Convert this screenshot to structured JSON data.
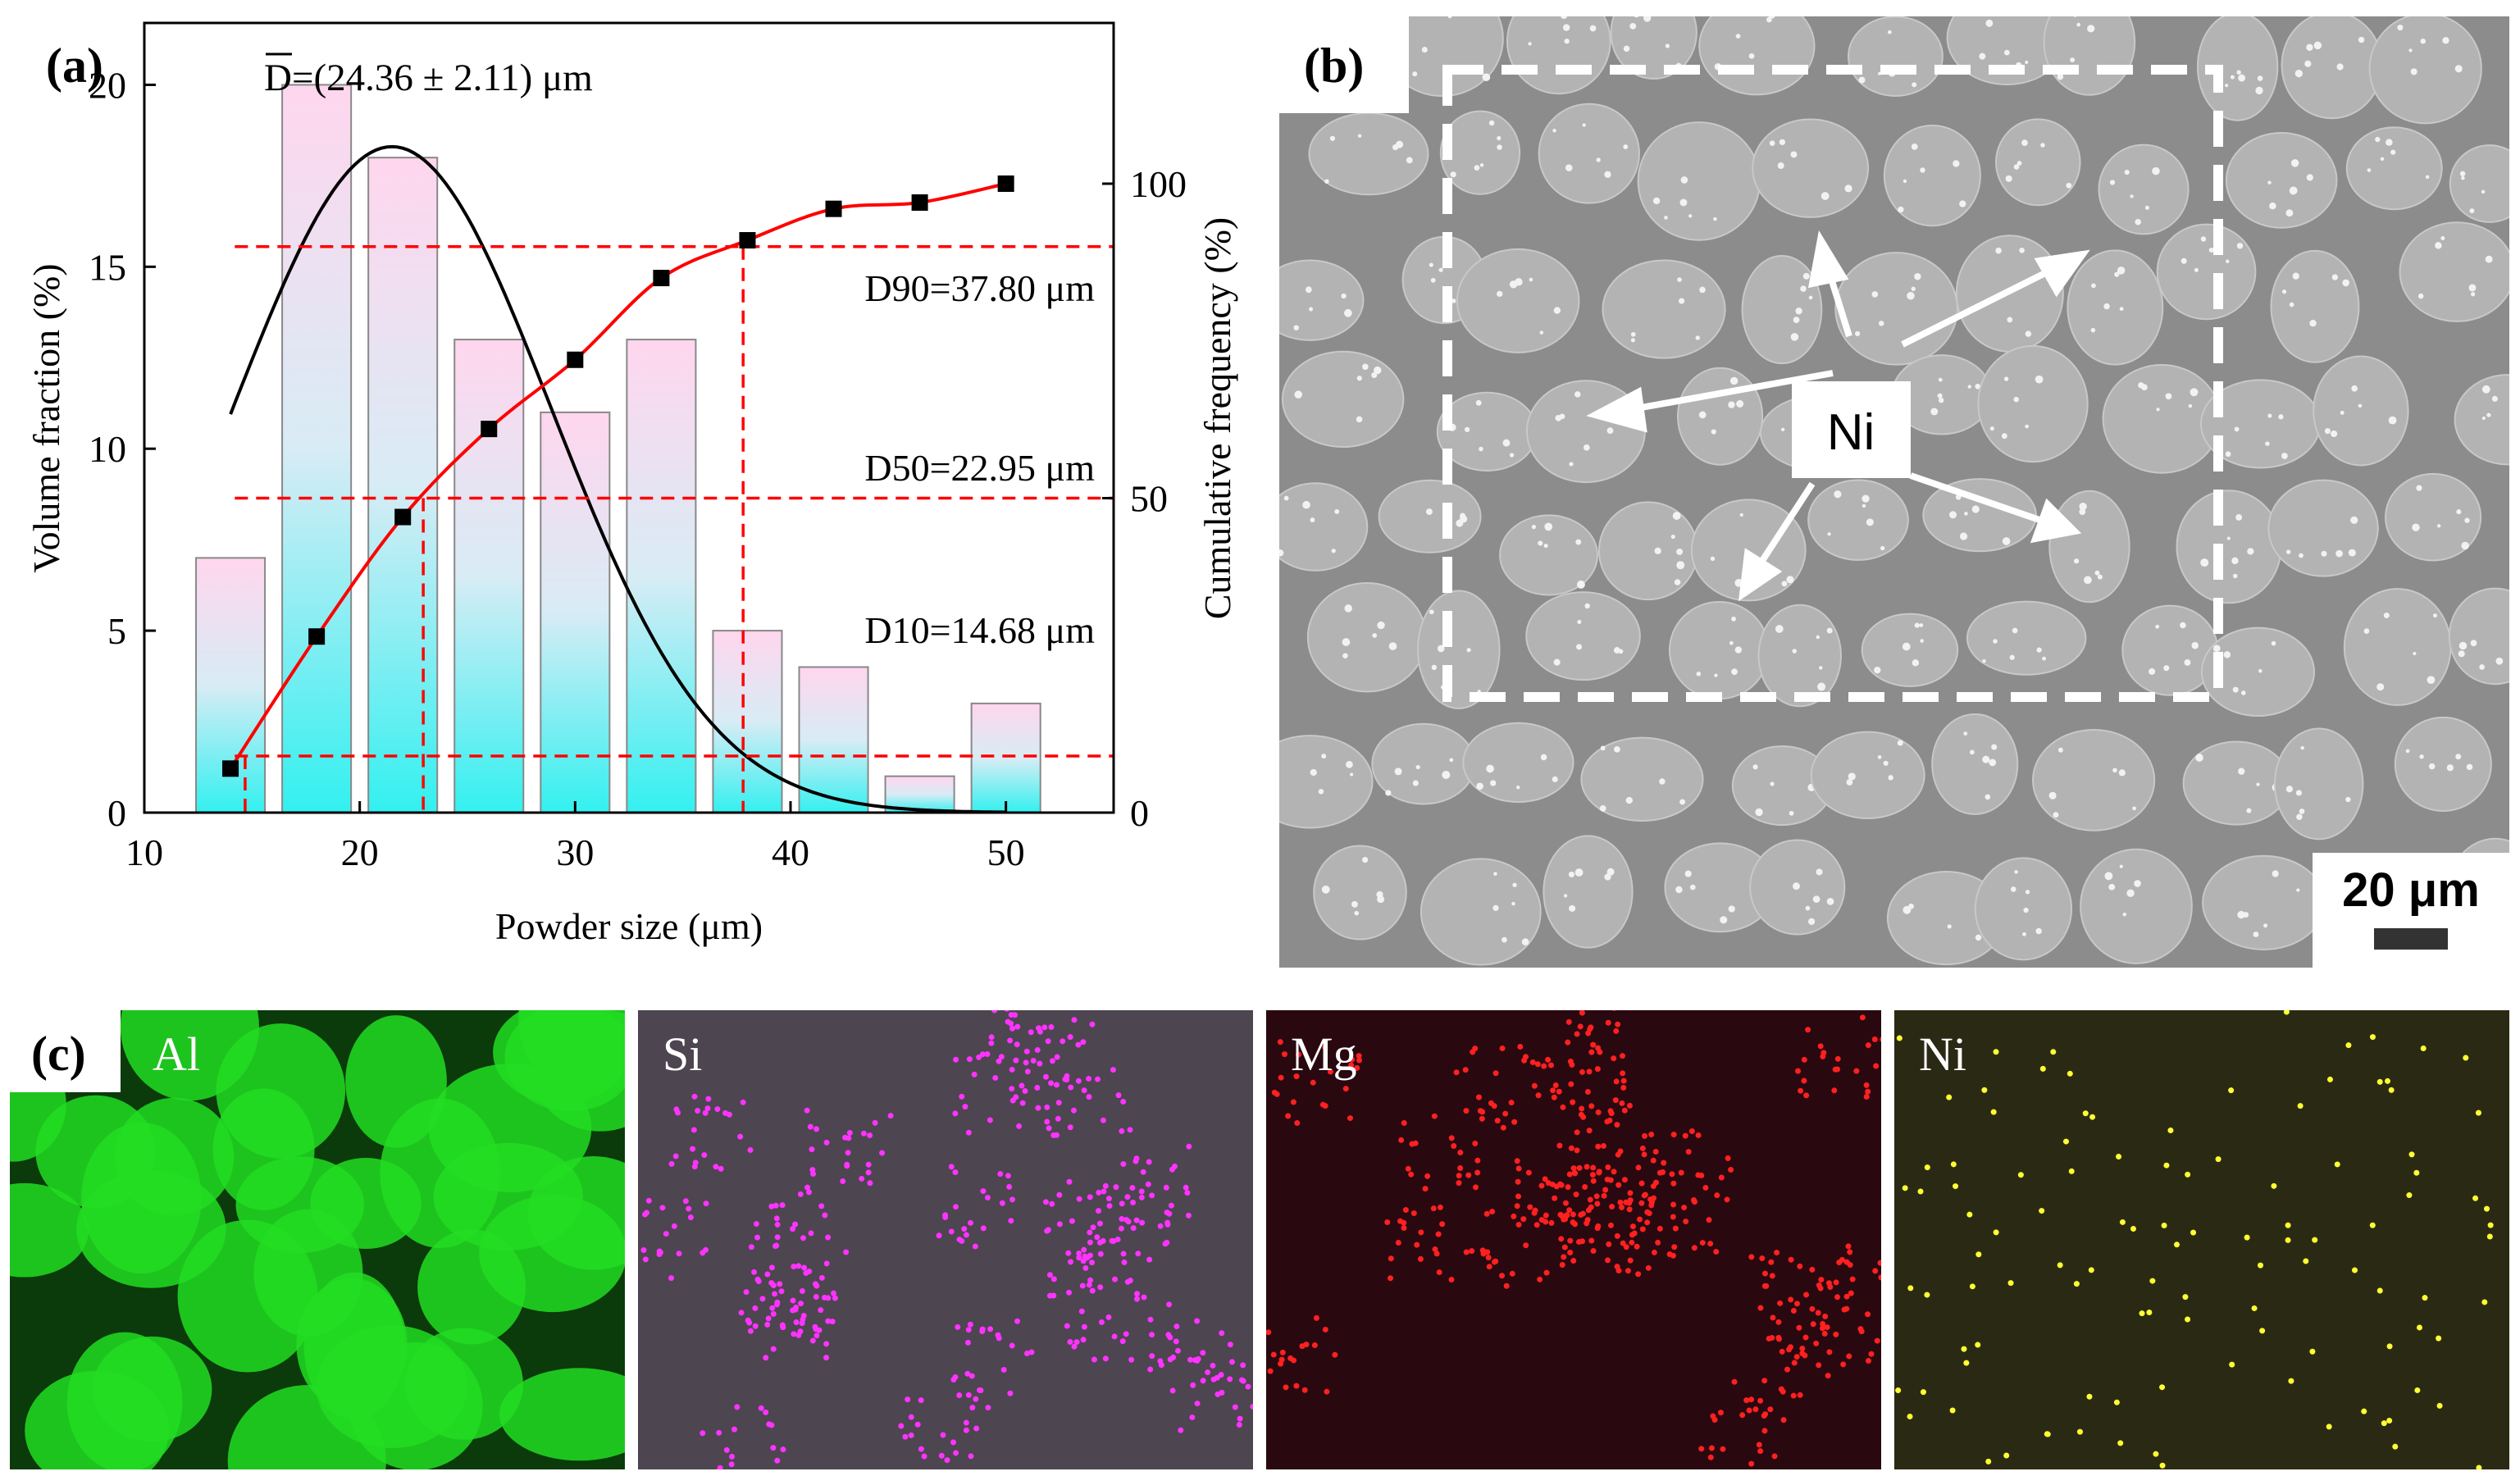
{
  "panel_labels": {
    "a": "(a)",
    "b": "(b)",
    "c": "(c)"
  },
  "chart_data": {
    "type": "bar",
    "mean_label": "D=(24.36 ± 2.11) μm",
    "xlabel": "Powder size (μm)",
    "ylabel_left": "Volume fraction (%)",
    "ylabel_right": "Cumulative frequency (%)",
    "xlim": [
      10,
      55
    ],
    "ylim_left": [
      0,
      21.7
    ],
    "ylim_right": [
      0,
      100
    ],
    "x_ticks": [
      10,
      20,
      30,
      40,
      50
    ],
    "y_left_ticks": [
      0,
      5,
      10,
      15,
      20
    ],
    "y_right_ticks": [
      0,
      50,
      100
    ],
    "bars": {
      "name": "Volume fraction",
      "x": [
        14,
        18,
        22,
        26,
        30,
        34,
        38,
        42,
        46,
        50
      ],
      "values": [
        7,
        20,
        18,
        13,
        11,
        13,
        5,
        4,
        1,
        3
      ],
      "width": 3.2
    },
    "cumulative_points": {
      "name": "Cumulative frequency",
      "x": [
        14,
        18,
        22,
        26,
        30,
        34,
        38,
        42,
        46,
        50
      ],
      "values": [
        7,
        28,
        47,
        61,
        72,
        85,
        91,
        96,
        97,
        100
      ]
    },
    "normal_fit": {
      "mean": 21.5,
      "sigma": 7.4,
      "peak": 18.3,
      "x_range": [
        14,
        50
      ]
    },
    "annotations": [
      {
        "label": "D10=14.68 μm",
        "x": 14.68,
        "cum": 9
      },
      {
        "label": "D50=22.95 μm",
        "x": 22.95,
        "cum": 50
      },
      {
        "label": "D90=37.80 μm",
        "x": 37.8,
        "cum": 90
      }
    ],
    "colors": {
      "curve": "#ff0000",
      "fit": "#000000",
      "bar_top": "#ffd6ee",
      "bar_bottom": "#33f0f0",
      "dash": "#ff0000"
    }
  },
  "sem": {
    "element_label": "Ni",
    "scale_bar_label": "20 μm",
    "background": "#8c8c8c",
    "particle_color": "#b3b3b3"
  },
  "maps": [
    {
      "element": "Al",
      "background": "#0b3a0b",
      "dot_color": "#22dd22",
      "kind": "dense"
    },
    {
      "element": "Si",
      "background": "#4d4550",
      "dot_color": "#ff33ff",
      "kind": "clusters"
    },
    {
      "element": "Mg",
      "background": "#2a0810",
      "dot_color": "#ff2020",
      "kind": "clusters"
    },
    {
      "element": "Ni",
      "background": "#2a2a14",
      "dot_color": "#ffff33",
      "kind": "sparse"
    }
  ]
}
